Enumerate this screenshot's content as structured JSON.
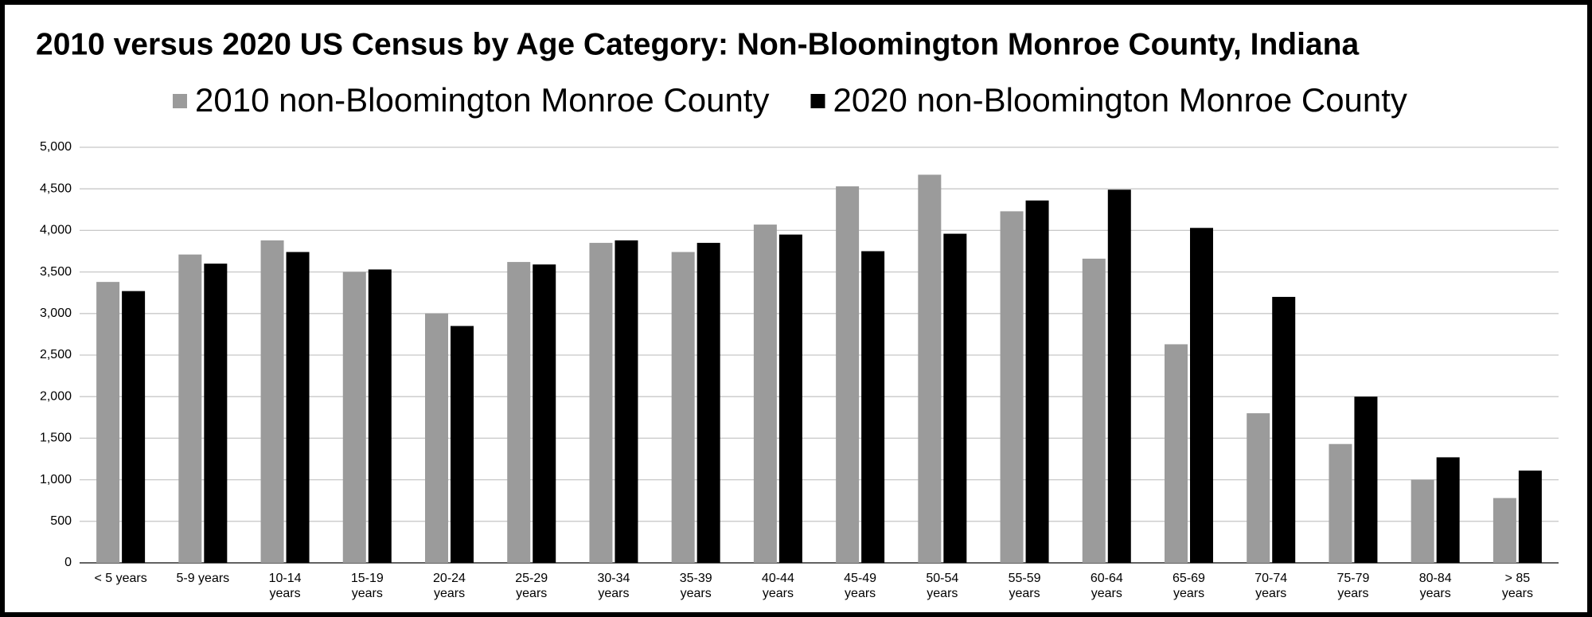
{
  "chart_data": {
    "type": "bar",
    "title": "2010 versus 2020 US Census by Age Category: Non-Bloomington Monroe County, Indiana",
    "categories": [
      "< 5 years",
      "5-9 years",
      "10-14 years",
      "15-19 years",
      "20-24 years",
      "25-29 years",
      "30-34 years",
      "35-39 years",
      "40-44 years",
      "45-49 years",
      "50-54 years",
      "55-59 years",
      "60-64 years",
      "65-69 years",
      "70-74 years",
      "75-79 years",
      "80-84 years",
      "> 85 years"
    ],
    "series": [
      {
        "name": "2010 non-Bloomington Monroe County",
        "color": "#9b9b9b",
        "values": [
          3380,
          3710,
          3880,
          3500,
          3000,
          3620,
          3850,
          3740,
          4070,
          4530,
          4670,
          4230,
          3660,
          2630,
          1800,
          1430,
          1000,
          780
        ]
      },
      {
        "name": "2020 non-Bloomington Monroe County",
        "color": "#000000",
        "values": [
          3270,
          3600,
          3740,
          3530,
          2850,
          3590,
          3880,
          3850,
          3950,
          3750,
          3960,
          4360,
          4490,
          4030,
          3200,
          2000,
          1270,
          1110
        ]
      }
    ],
    "ylim": [
      0,
      5000
    ],
    "yticks": [
      0,
      500,
      {
        "value": 1000,
        "label": "1,000"
      },
      {
        "value": 1500,
        "label": "1,500"
      },
      {
        "value": 2000,
        "label": "2,000"
      },
      {
        "value": 2500,
        "label": "2,500"
      },
      {
        "value": 3000,
        "label": "3,000"
      },
      {
        "value": 3500,
        "label": "3,500"
      },
      {
        "value": 4000,
        "label": "4,000"
      },
      {
        "value": 4500,
        "label": "4,500"
      },
      {
        "value": 5000,
        "label": "5,000"
      }
    ],
    "grid": true,
    "legend": "top"
  }
}
